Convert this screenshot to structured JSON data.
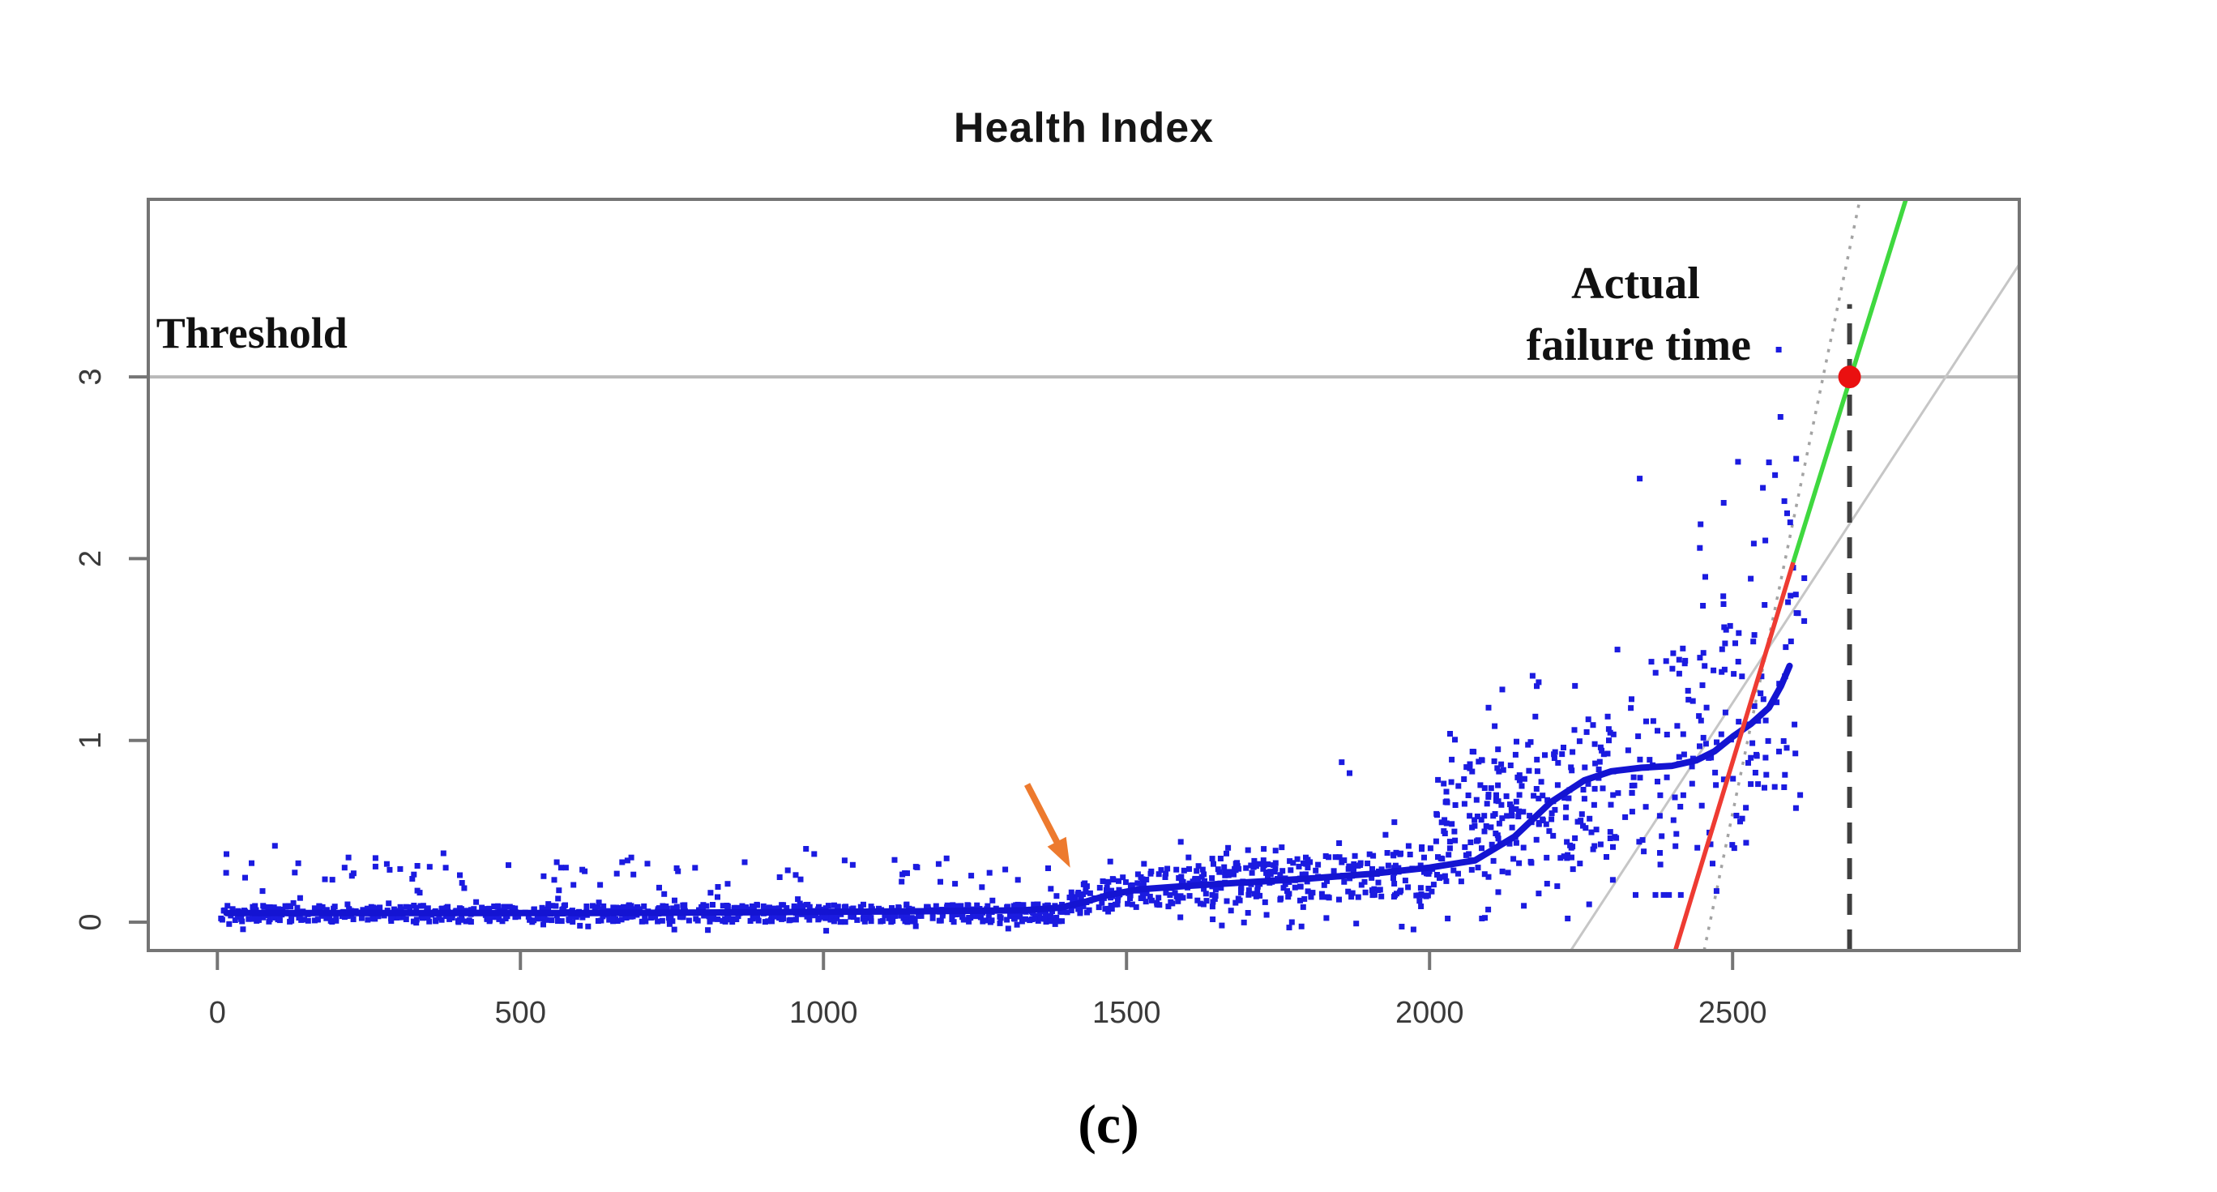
{
  "figure": {
    "caption": "(c)"
  },
  "chart_data": {
    "type": "scatter",
    "title": "Health Index",
    "xlabel": "",
    "ylabel": "",
    "x_ticks": [
      0,
      500,
      1000,
      1500,
      2000,
      2500
    ],
    "y_ticks": [
      0,
      1,
      2,
      3
    ],
    "xlim": [
      -114,
      2973
    ],
    "ylim": [
      -0.156,
      3.977
    ],
    "grid": false,
    "legend": "none",
    "threshold": {
      "y": 3.0,
      "label": "Threshold"
    },
    "actual_failure_time": {
      "x": 2693,
      "label_line1": "Actual",
      "label_line2": "failure time"
    },
    "failure_point": {
      "x": 2693,
      "y": 3.0
    },
    "dashed_line": {
      "x": 2693,
      "y0": -0.156,
      "y1": 3.4
    },
    "fitted_line": {
      "red_segment": [
        [
          2406,
          -0.15
        ],
        [
          2600,
          1.98
        ]
      ],
      "green_segment": [
        [
          2600,
          1.98
        ],
        [
          2786,
          3.977
        ]
      ]
    },
    "confidence_dotted_line": [
      [
        2453,
        -0.156
      ],
      [
        2710,
        3.977
      ]
    ],
    "secondary_gray_line": [
      [
        2233,
        -0.156
      ],
      [
        2973,
        3.62
      ]
    ],
    "arrow": {
      "tail": [
        1336,
        0.758
      ],
      "head": [
        1407,
        0.3
      ]
    },
    "smooth_line": [
      [
        15,
        0.05
      ],
      [
        300,
        0.05
      ],
      [
        600,
        0.05
      ],
      [
        900,
        0.055
      ],
      [
        1150,
        0.06
      ],
      [
        1330,
        0.065
      ],
      [
        1390,
        0.08
      ],
      [
        1430,
        0.11
      ],
      [
        1470,
        0.15
      ],
      [
        1520,
        0.18
      ],
      [
        1600,
        0.2
      ],
      [
        1700,
        0.22
      ],
      [
        1800,
        0.24
      ],
      [
        1900,
        0.265
      ],
      [
        2000,
        0.3
      ],
      [
        2075,
        0.34
      ],
      [
        2140,
        0.47
      ],
      [
        2200,
        0.66
      ],
      [
        2255,
        0.78
      ],
      [
        2300,
        0.83
      ],
      [
        2350,
        0.85
      ],
      [
        2400,
        0.86
      ],
      [
        2440,
        0.89
      ],
      [
        2470,
        0.94
      ],
      [
        2500,
        1.02
      ],
      [
        2530,
        1.09
      ],
      [
        2560,
        1.18
      ],
      [
        2580,
        1.3
      ],
      [
        2594,
        1.41
      ]
    ],
    "scatter": {
      "seed": 42,
      "point_size": 7,
      "segments": [
        {
          "n": 850,
          "x": [
            3,
            1400
          ],
          "center": [
            0.045,
            0.05
          ],
          "half": [
            0.045,
            0.05
          ],
          "up_p": 0.1,
          "up": [
            0.04,
            0.33
          ],
          "down_p": 0.05,
          "down": [
            0.01,
            0.06
          ],
          "ymin": -0.08,
          "ymax": 0.5
        },
        {
          "n": 85,
          "x": [
            1400,
            1530
          ],
          "center": [
            0.12,
            0.17
          ],
          "half": [
            0.08,
            0.1
          ],
          "up_p": 0.07,
          "up": [
            0.04,
            0.18
          ],
          "down_p": 0.08,
          "down": [
            0.03,
            0.12
          ],
          "ymin": -0.05,
          "ymax": 0.45
        },
        {
          "n": 300,
          "x": [
            1530,
            2010
          ],
          "center": [
            0.19,
            0.28
          ],
          "half": [
            0.1,
            0.14
          ],
          "up_p": 0.08,
          "up": [
            0.04,
            0.2
          ],
          "down_p": 0.12,
          "down": [
            0.05,
            0.22
          ],
          "ymin": -0.04,
          "ymax": 0.55
        },
        {
          "n": 250,
          "x": [
            2010,
            2330
          ],
          "center": [
            0.5,
            0.78
          ],
          "half": [
            0.3,
            0.42
          ],
          "up_p": 0.12,
          "up": [
            0.05,
            0.45
          ],
          "down_p": 0.15,
          "down": [
            0.1,
            0.4
          ],
          "ymin": 0.02,
          "ymax": 1.4
        },
        {
          "n": 160,
          "x": [
            2330,
            2620
          ],
          "center": [
            0.85,
            1.15
          ],
          "half": [
            0.5,
            0.75
          ],
          "up_p": 0.16,
          "up": [
            0.1,
            1.1
          ],
          "down_p": 0.18,
          "down": [
            0.15,
            0.55
          ],
          "ymin": 0.15,
          "ymax": 2.55
        }
      ],
      "outliers": [
        [
          95,
          0.42
        ],
        [
          210,
          0.3
        ],
        [
          330,
          0.31
        ],
        [
          560,
          0.33
        ],
        [
          575,
          0.3
        ],
        [
          760,
          0.28
        ],
        [
          870,
          0.33
        ],
        [
          1035,
          0.34
        ],
        [
          1190,
          0.32
        ],
        [
          1300,
          0.29
        ],
        [
          1855,
          0.88
        ],
        [
          1868,
          0.82
        ],
        [
          1942,
          0.55
        ],
        [
          2120,
          1.28
        ],
        [
          2180,
          1.32
        ],
        [
          2240,
          1.3
        ],
        [
          2310,
          1.5
        ],
        [
          2455,
          1.9
        ],
        [
          2485,
          1.75
        ],
        [
          2496,
          1.63
        ],
        [
          2530,
          1.89
        ],
        [
          2536,
          1.58
        ],
        [
          2550,
          2.39
        ],
        [
          2554,
          2.1
        ],
        [
          2560,
          2.53
        ],
        [
          2570,
          2.46
        ],
        [
          2576,
          3.15
        ],
        [
          2579,
          2.78
        ],
        [
          2590,
          2.25
        ],
        [
          2595,
          2.2
        ],
        [
          2600,
          1.95
        ],
        [
          2608,
          1.7
        ]
      ]
    },
    "annotations": [
      {
        "name": "threshold-label",
        "text": "Threshold",
        "at": [
          -101,
          3.16
        ],
        "anchor": "start",
        "size": 54
      },
      {
        "name": "actual-failure-label-1",
        "text": "Actual",
        "at": [
          2340,
          3.433
        ],
        "anchor": "middle",
        "size": 56
      },
      {
        "name": "actual-failure-label-2",
        "text": "failure time",
        "at": [
          2345,
          3.094
        ],
        "anchor": "middle",
        "size": 56
      }
    ],
    "colors": {
      "scatter_blue": "#1b1be0",
      "smooth_blue": "#1414d2",
      "fit_red": "#ee3b32",
      "fit_green": "#3fd83f",
      "failure_dot_red": "#ea1010",
      "threshold_gray": "#b9b9b9",
      "dashed_dark": "#3f3f3f",
      "dotted_gray": "#a3a3a3",
      "thin_gray": "#c6c6c6",
      "axis_gray": "#757575",
      "tick_label": "#3a3a3a",
      "annotation_black": "#111111",
      "arrow_orange": "#ed7a2e"
    }
  }
}
